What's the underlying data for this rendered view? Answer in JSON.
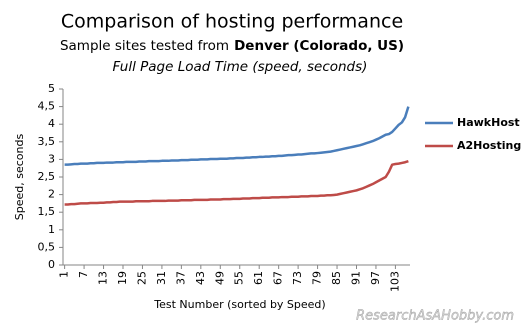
{
  "chart_data": {
    "type": "line",
    "title": "Comparison of hosting performance",
    "subtitle": [
      "Sample sites tested from",
      "Denver (Colorado, US)"
    ],
    "subtitle2": "Full Page Load Time (speed, seconds)",
    "x_label": "Test Number (sorted by Speed)",
    "y_label": "Speed, seconds",
    "watermark": "ResearchAsAHobby.com",
    "x": [
      1,
      2,
      3,
      4,
      5,
      6,
      7,
      8,
      9,
      10,
      11,
      12,
      13,
      14,
      15,
      16,
      17,
      18,
      19,
      20,
      21,
      22,
      23,
      24,
      25,
      26,
      27,
      28,
      29,
      30,
      31,
      32,
      33,
      34,
      35,
      36,
      37,
      38,
      39,
      40,
      41,
      42,
      43,
      44,
      45,
      46,
      47,
      48,
      49,
      50,
      51,
      52,
      53,
      54,
      55,
      56,
      57,
      58,
      59,
      60,
      61,
      62,
      63,
      64,
      65,
      66,
      67,
      68,
      69,
      70,
      71,
      72,
      73,
      74,
      75,
      76,
      77,
      78,
      79,
      80,
      81,
      82,
      83,
      84,
      85,
      86,
      87,
      88,
      89,
      90,
      91,
      92,
      93,
      94,
      95,
      96,
      97,
      98,
      99,
      100,
      101,
      102,
      103,
      104,
      105,
      106,
      107
    ],
    "xlim": [
      0.5,
      107.5
    ],
    "xticks": [
      1,
      7,
      13,
      19,
      25,
      31,
      37,
      43,
      49,
      55,
      61,
      67,
      73,
      79,
      85,
      91,
      97,
      103
    ],
    "ylim": [
      0,
      5
    ],
    "yticks": [
      0,
      {
        "value": 0.5,
        "label": "0,5"
      },
      1,
      {
        "value": 1.5,
        "label": "1,5"
      },
      2,
      {
        "value": 2.5,
        "label": "2,5"
      },
      3,
      {
        "value": 3.5,
        "label": "3,5"
      },
      4,
      {
        "value": 4.5,
        "label": "4,5"
      },
      5
    ],
    "grid": false,
    "legend": "right",
    "series": [
      {
        "name": "HawkHost",
        "color": "#4a7ebb",
        "values": [
          2.85,
          2.85,
          2.86,
          2.87,
          2.87,
          2.88,
          2.88,
          2.88,
          2.89,
          2.89,
          2.9,
          2.9,
          2.9,
          2.91,
          2.91,
          2.91,
          2.92,
          2.92,
          2.92,
          2.93,
          2.93,
          2.93,
          2.93,
          2.94,
          2.94,
          2.94,
          2.95,
          2.95,
          2.95,
          2.95,
          2.96,
          2.96,
          2.96,
          2.97,
          2.97,
          2.97,
          2.98,
          2.98,
          2.98,
          2.99,
          2.99,
          2.99,
          3.0,
          3.0,
          3.0,
          3.01,
          3.01,
          3.01,
          3.02,
          3.02,
          3.02,
          3.03,
          3.03,
          3.04,
          3.04,
          3.04,
          3.05,
          3.05,
          3.06,
          3.06,
          3.07,
          3.07,
          3.08,
          3.08,
          3.09,
          3.09,
          3.1,
          3.1,
          3.11,
          3.12,
          3.12,
          3.13,
          3.14,
          3.14,
          3.15,
          3.16,
          3.17,
          3.17,
          3.18,
          3.19,
          3.2,
          3.21,
          3.22,
          3.24,
          3.26,
          3.28,
          3.3,
          3.32,
          3.34,
          3.36,
          3.38,
          3.4,
          3.43,
          3.46,
          3.49,
          3.52,
          3.56,
          3.6,
          3.65,
          3.7,
          3.72,
          3.78,
          3.88,
          3.98,
          4.05,
          4.2,
          4.5
        ]
      },
      {
        "name": "A2Hosting",
        "color": "#be4b48",
        "values": [
          1.72,
          1.72,
          1.73,
          1.73,
          1.74,
          1.75,
          1.75,
          1.75,
          1.76,
          1.76,
          1.76,
          1.77,
          1.77,
          1.78,
          1.78,
          1.79,
          1.79,
          1.8,
          1.8,
          1.8,
          1.8,
          1.8,
          1.81,
          1.81,
          1.81,
          1.81,
          1.81,
          1.82,
          1.82,
          1.82,
          1.82,
          1.82,
          1.83,
          1.83,
          1.83,
          1.83,
          1.84,
          1.84,
          1.84,
          1.84,
          1.85,
          1.85,
          1.85,
          1.85,
          1.85,
          1.86,
          1.86,
          1.86,
          1.86,
          1.87,
          1.87,
          1.87,
          1.88,
          1.88,
          1.88,
          1.89,
          1.89,
          1.89,
          1.9,
          1.9,
          1.9,
          1.91,
          1.91,
          1.91,
          1.92,
          1.92,
          1.92,
          1.93,
          1.93,
          1.93,
          1.94,
          1.94,
          1.94,
          1.95,
          1.95,
          1.95,
          1.96,
          1.96,
          1.96,
          1.97,
          1.97,
          1.98,
          1.98,
          1.99,
          2.0,
          2.02,
          2.04,
          2.06,
          2.08,
          2.1,
          2.12,
          2.15,
          2.18,
          2.22,
          2.26,
          2.3,
          2.35,
          2.4,
          2.45,
          2.5,
          2.65,
          2.85,
          2.87,
          2.88,
          2.9,
          2.92,
          2.95
        ]
      }
    ]
  }
}
